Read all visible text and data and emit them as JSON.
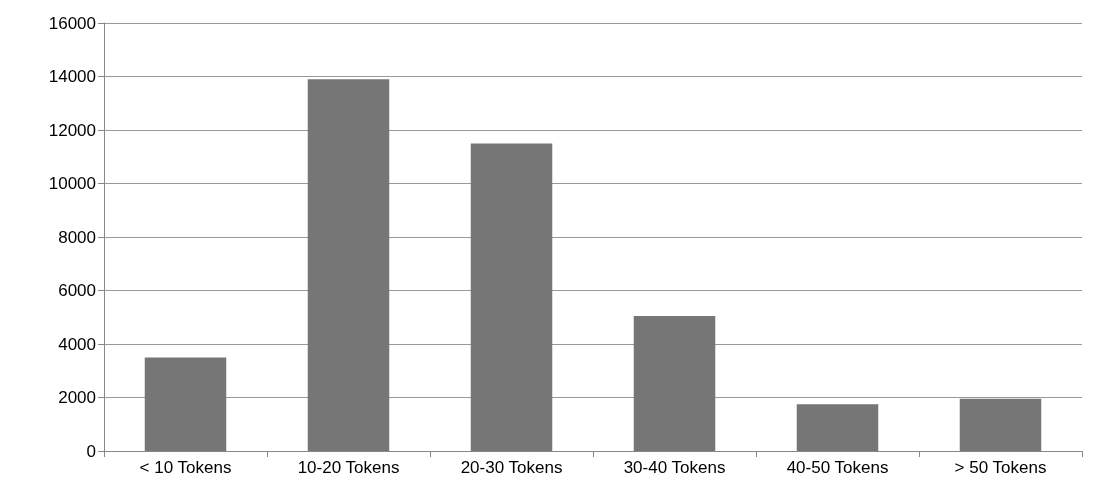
{
  "chart_data": {
    "type": "bar",
    "categories": [
      "< 10 Tokens",
      "10-20 Tokens",
      "20-30 Tokens",
      "30-40 Tokens",
      "40-50 Tokens",
      "> 50 Tokens"
    ],
    "values": [
      3500,
      13900,
      11500,
      5050,
      1750,
      1950
    ],
    "color": "#767676",
    "ylim": [
      0,
      16000
    ],
    "yticks": [
      0,
      2000,
      4000,
      6000,
      8000,
      10000,
      12000,
      14000,
      16000
    ],
    "grid": "y"
  }
}
